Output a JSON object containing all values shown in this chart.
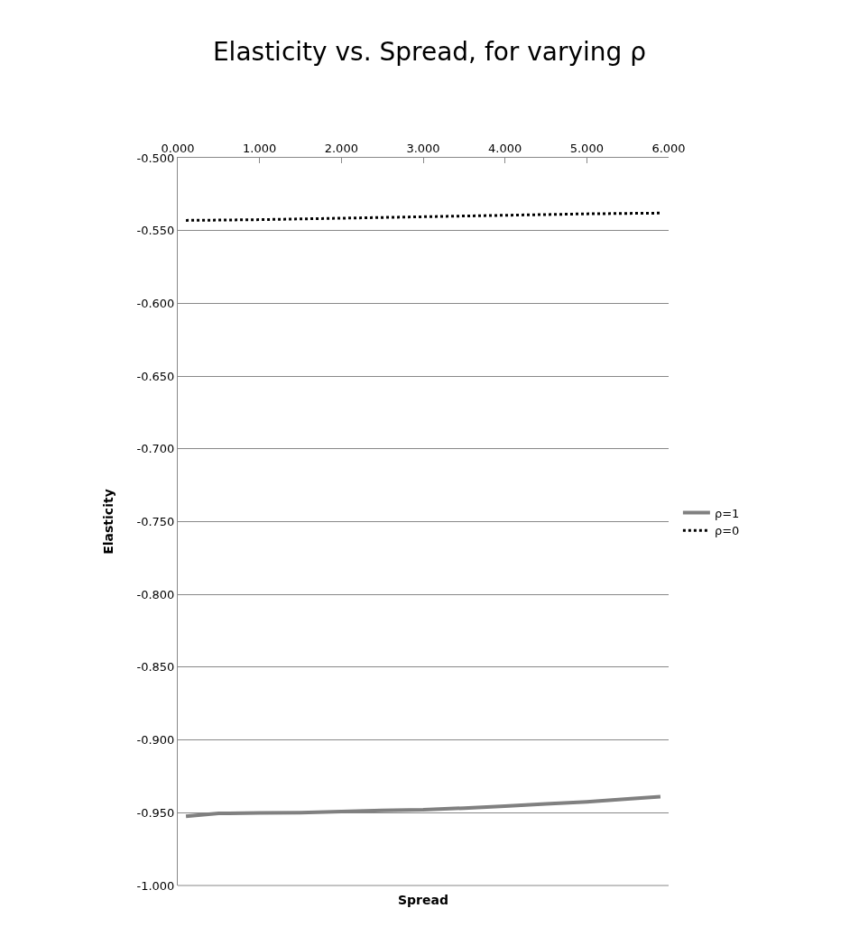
{
  "chart_data": {
    "type": "line",
    "title": "Elasticity vs. Spread, for varying ρ",
    "xlabel": "Spread",
    "ylabel": "Elasticity",
    "xlim": [
      0,
      6
    ],
    "xticks": [
      {
        "value": 0,
        "label": "0.000"
      },
      {
        "value": 1,
        "label": "1.000"
      },
      {
        "value": 2,
        "label": "2.000"
      },
      {
        "value": 3,
        "label": "3.000"
      },
      {
        "value": 4,
        "label": "4.000"
      },
      {
        "value": 5,
        "label": "5.000"
      },
      {
        "value": 6,
        "label": "6.000"
      }
    ],
    "ylim": [
      -1,
      -0.5
    ],
    "yticks": [
      {
        "value": -1,
        "label": "-1.000"
      },
      {
        "value": -0.95,
        "label": "-0.950"
      },
      {
        "value": -0.9,
        "label": "-0.900"
      },
      {
        "value": -0.85,
        "label": "-0.850"
      },
      {
        "value": -0.8,
        "label": "-0.800"
      },
      {
        "value": -0.75,
        "label": "-0.750"
      },
      {
        "value": -0.7,
        "label": "-0.700"
      },
      {
        "value": -0.65,
        "label": "-0.650"
      },
      {
        "value": -0.6,
        "label": "-0.600"
      },
      {
        "value": -0.55,
        "label": "-0.550"
      },
      {
        "value": -0.5,
        "label": "-0.500"
      }
    ],
    "x": [
      0.1,
      0.5,
      1,
      1.5,
      2,
      2.5,
      3,
      3.5,
      4,
      4.5,
      5,
      5.5,
      5.9
    ],
    "series": [
      {
        "name": "ρ=1",
        "color": "#808080",
        "line_style": "solid",
        "values": [
          -0.9525,
          -0.9505,
          -0.9502,
          -0.95,
          -0.9492,
          -0.9484,
          -0.948,
          -0.9468,
          -0.9455,
          -0.944,
          -0.9425,
          -0.9405,
          -0.939
        ]
      },
      {
        "name": "ρ=0",
        "color": "#000000",
        "line_style": "dotted",
        "values": [
          -0.543,
          -0.5428,
          -0.5425,
          -0.542,
          -0.5415,
          -0.541,
          -0.5405,
          -0.54,
          -0.5395,
          -0.539,
          -0.5385,
          -0.5382,
          -0.538
        ]
      }
    ],
    "grid": "y",
    "legend": "right",
    "marker": "none"
  }
}
